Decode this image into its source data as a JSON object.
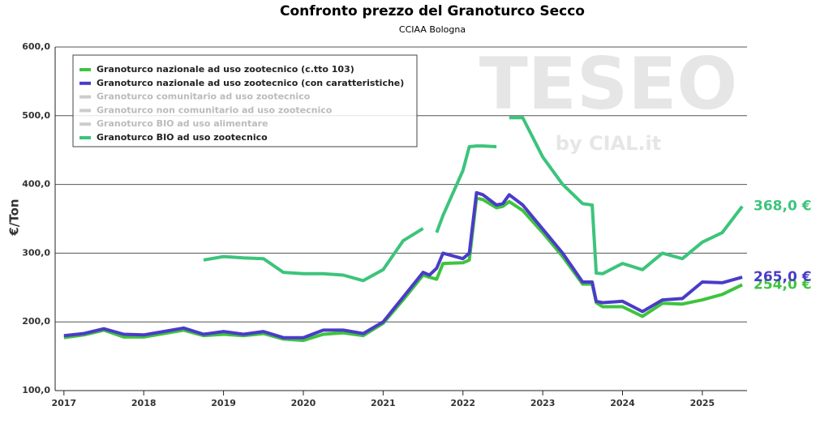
{
  "chart_data": {
    "type": "line",
    "title": "Confronto prezzo del Granoturco Secco",
    "subtitle": "CCIAA Bologna",
    "y_label": "€/Ton",
    "watermark": "TESEO",
    "watermark_sub": "by CIAL.it",
    "x": [
      2017,
      2017.25,
      2017.5,
      2017.75,
      2018,
      2018.25,
      2018.5,
      2018.75,
      2019,
      2019.25,
      2019.5,
      2019.75,
      2020,
      2020.25,
      2020.5,
      2020.75,
      2021,
      2021.25,
      2021.5,
      2021.58,
      2021.67,
      2021.75,
      2022,
      2022.08,
      2022.17,
      2022.25,
      2022.42,
      2022.5,
      2022.58,
      2022.75,
      2023,
      2023.25,
      2023.5,
      2023.62,
      2023.67,
      2023.75,
      2024,
      2024.25,
      2024.5,
      2024.75,
      2025,
      2025.25,
      2025.5
    ],
    "xlim": [
      2016.89,
      2025.56
    ],
    "xticks": [
      2017,
      2018,
      2019,
      2020,
      2021,
      2022,
      2023,
      2024,
      2025
    ],
    "ylim": [
      100,
      600
    ],
    "yticks": [
      {
        "value": 100,
        "label": "100,0"
      },
      {
        "value": 200,
        "label": "200,0"
      },
      {
        "value": 300,
        "label": "300,0"
      },
      {
        "value": 400,
        "label": "400,0"
      },
      {
        "value": 500,
        "label": "500,0"
      },
      {
        "value": 600,
        "label": "600,0"
      }
    ],
    "grid": true,
    "legend": "top-left",
    "series": [
      {
        "name": "Granoturco nazionale ad uso zootecnico (c.tto 103)",
        "color": "#3ec43e",
        "last_label": "254,0 €",
        "values": [
          177,
          181,
          188,
          178,
          178,
          183,
          188,
          180,
          182,
          180,
          183,
          175,
          173,
          182,
          184,
          180,
          198,
          232,
          268,
          265,
          262,
          285,
          286,
          290,
          380,
          378,
          366,
          368,
          375,
          362,
          330,
          295,
          255,
          255,
          228,
          222,
          222,
          208,
          227,
          226,
          232,
          240,
          254
        ]
      },
      {
        "name": "Granoturco nazionale ad uso zootecnico (con caratteristiche)",
        "color": "#4a3cc8",
        "last_label": "265,0 €",
        "values": [
          180,
          183,
          190,
          182,
          181,
          186,
          191,
          182,
          186,
          182,
          186,
          177,
          177,
          188,
          188,
          183,
          200,
          236,
          272,
          268,
          278,
          300,
          292,
          300,
          388,
          385,
          370,
          372,
          385,
          370,
          335,
          300,
          258,
          258,
          230,
          228,
          230,
          215,
          232,
          234,
          258,
          257,
          265
        ]
      },
      {
        "name": "Granoturco comunitario ad uso zootecnico",
        "color": "#cccccc",
        "visible": false,
        "values": [
          null,
          null,
          null,
          null,
          null,
          null,
          null,
          null,
          null,
          null,
          null,
          null,
          null,
          null,
          null,
          null,
          null,
          null,
          null,
          null,
          null,
          null,
          null,
          null,
          null,
          null,
          null,
          null,
          null,
          null,
          null,
          null,
          null,
          null,
          null,
          null,
          null,
          null,
          null,
          null,
          null,
          null,
          null
        ]
      },
      {
        "name": "Granoturco non comunitario ad uso zootecnico",
        "color": "#cccccc",
        "visible": false,
        "values": [
          null,
          null,
          null,
          null,
          null,
          null,
          null,
          null,
          null,
          null,
          null,
          null,
          null,
          null,
          null,
          null,
          null,
          null,
          null,
          null,
          null,
          null,
          null,
          null,
          null,
          null,
          null,
          null,
          null,
          null,
          null,
          null,
          null,
          null,
          null,
          null,
          null,
          null,
          null,
          null,
          null,
          null,
          null
        ]
      },
      {
        "name": "Granoturco BIO ad uso alimentare",
        "color": "#cccccc",
        "visible": false,
        "values": [
          null,
          null,
          null,
          null,
          null,
          null,
          null,
          null,
          null,
          null,
          null,
          null,
          null,
          null,
          null,
          null,
          null,
          null,
          null,
          null,
          null,
          null,
          null,
          null,
          null,
          null,
          null,
          null,
          null,
          null,
          null,
          null,
          null,
          null,
          null,
          null,
          null,
          null,
          null,
          null,
          null,
          null,
          null
        ]
      },
      {
        "name": "Granoturco BIO ad uso zootecnico",
        "color": "#3cc47c",
        "last_label": "368,0 €",
        "values": [
          null,
          null,
          null,
          null,
          null,
          null,
          null,
          290,
          295,
          293,
          292,
          272,
          270,
          270,
          268,
          260,
          276,
          318,
          336,
          null,
          330,
          355,
          420,
          455,
          456,
          456,
          455,
          null,
          497,
          497,
          440,
          400,
          372,
          370,
          271,
          270,
          285,
          276,
          300,
          292,
          316,
          330,
          368
        ]
      }
    ]
  }
}
